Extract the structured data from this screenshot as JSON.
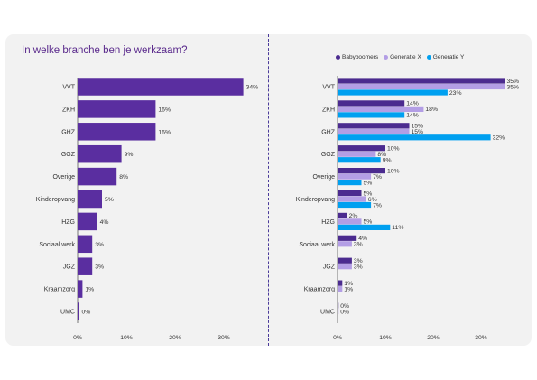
{
  "page": {
    "title": "In welke branche ben je werkzaam?"
  },
  "colors": {
    "babyboomers": "#4b2b8f",
    "generatie_x": "#b39ee5",
    "generatie_y": "#00a0f0",
    "total": "#5a2ea0"
  },
  "chart_data": [
    {
      "type": "bar",
      "orientation": "horizontal",
      "title": "In welke branche ben je werkzaam?",
      "categories": [
        "VVT",
        "ZKH",
        "GHZ",
        "GGZ",
        "Overige",
        "Kinderopvang",
        "HZG",
        "Sociaal werk",
        "JGZ",
        "Kraamzorg",
        "UMC"
      ],
      "values": [
        34,
        16,
        16,
        9,
        8,
        5,
        4,
        3,
        3,
        1,
        0
      ],
      "value_labels": [
        "34%",
        "16%",
        "16%",
        "9%",
        "8%",
        "5%",
        "4%",
        "3%",
        "3%",
        "1%",
        "0%"
      ],
      "xlim": [
        0,
        35
      ],
      "xticks": [
        "0%",
        "10%",
        "20%",
        "30%"
      ]
    },
    {
      "type": "bar",
      "orientation": "horizontal",
      "categories": [
        "VVT",
        "ZKH",
        "GHZ",
        "GGZ",
        "Overige",
        "Kinderopvang",
        "HZG",
        "Sociaal werk",
        "JGZ",
        "Kraamzorg",
        "UMC"
      ],
      "series": [
        {
          "name": "Babyboomers",
          "values": [
            35,
            14,
            15,
            10,
            10,
            5,
            2,
            4,
            3,
            1,
            0
          ],
          "labels": [
            "35%",
            "14%",
            "15%",
            "10%",
            "10%",
            "5%",
            "2%",
            "4%",
            "3%",
            "1%",
            "0%"
          ]
        },
        {
          "name": "Generatie X",
          "values": [
            35,
            18,
            15,
            8,
            7,
            6,
            5,
            3,
            3,
            1,
            0
          ],
          "labels": [
            "35%",
            "18%",
            "15%",
            "8%",
            "7%",
            "6%",
            "5%",
            "3%",
            "3%",
            "1%",
            "0%"
          ]
        },
        {
          "name": "Generatie Y",
          "values": [
            23,
            14,
            32,
            9,
            5,
            7,
            11,
            null,
            null,
            null,
            null
          ],
          "labels": [
            "23%",
            "14%",
            "32%",
            "9%",
            "5%",
            "7%",
            "11%",
            null,
            null,
            null,
            null
          ]
        }
      ],
      "legend_position": "top",
      "xlim": [
        0,
        35
      ],
      "xticks": [
        "0%",
        "10%",
        "20%",
        "30%"
      ]
    }
  ]
}
